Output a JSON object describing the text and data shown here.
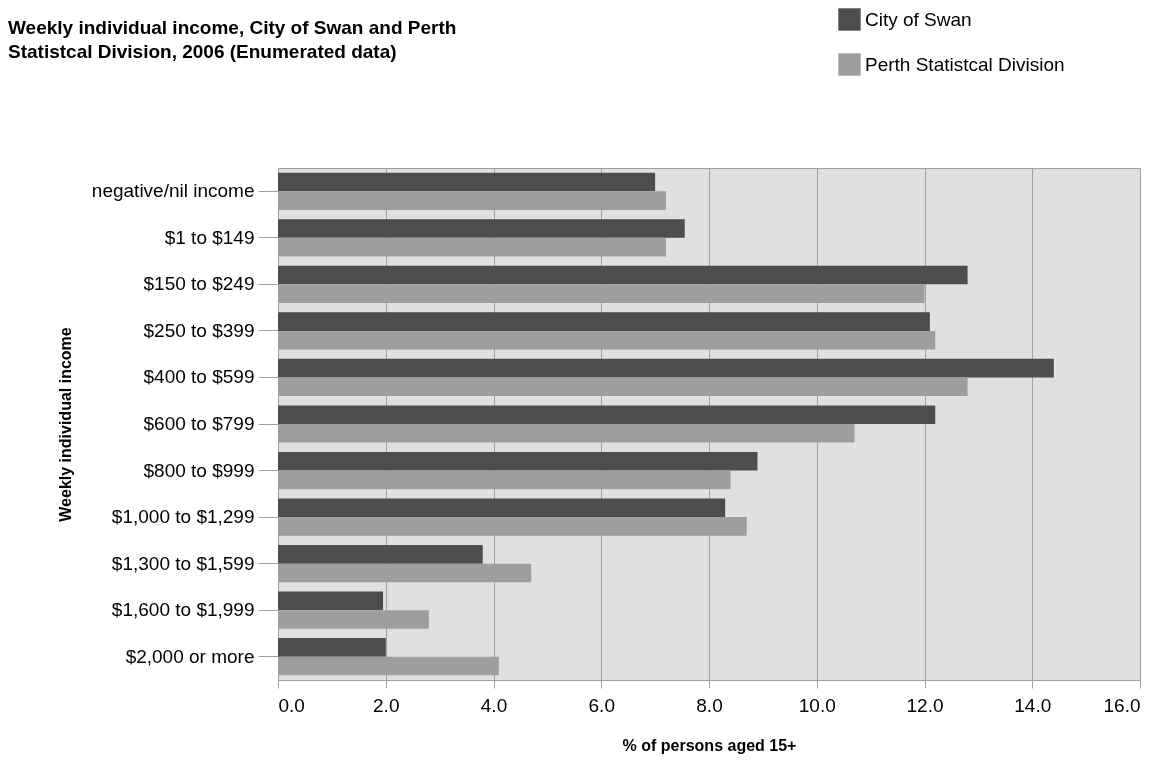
{
  "chart_data": {
    "type": "bar",
    "orientation": "horizontal",
    "title": "Weekly individual income, City of Swan and Perth Statistcal Division, 2006 (Enumerated data)",
    "xlabel": "% of persons aged 15+",
    "ylabel": "Weekly individual income",
    "categories": [
      "negative/nil income",
      "$1 to $149",
      "$150 to $249",
      "$250 to $399",
      "$400 to $599",
      "$600 to $799",
      "$800 to $999",
      "$1,000 to $1,299",
      "$1,300 to $1,599",
      "$1,600 to $1,999",
      "$2,000 or more"
    ],
    "series": [
      {
        "name": "City of Swan",
        "color": "#4d4d4d",
        "values": [
          7.0,
          7.55,
          12.8,
          12.1,
          14.4,
          12.2,
          8.9,
          8.3,
          3.8,
          1.95,
          2.0
        ]
      },
      {
        "name": "Perth Statistcal Division",
        "color": "#9e9e9e",
        "values": [
          7.2,
          7.2,
          12.0,
          12.2,
          12.8,
          10.7,
          8.4,
          8.7,
          4.7,
          2.8,
          4.1
        ]
      }
    ],
    "xlim": [
      0,
      16
    ],
    "xticks": [
      {
        "value": 0,
        "label": "0.0"
      },
      {
        "value": 2,
        "label": "2.0"
      },
      {
        "value": 4,
        "label": "4.0"
      },
      {
        "value": 6,
        "label": "6.0"
      },
      {
        "value": 8,
        "label": "8.0"
      },
      {
        "value": 10,
        "label": "10.0"
      },
      {
        "value": 12,
        "label": "12.0"
      },
      {
        "value": 14,
        "label": "14.0"
      },
      {
        "value": 16,
        "label": "16.0"
      }
    ],
    "grid": "x",
    "legend": "top right"
  }
}
